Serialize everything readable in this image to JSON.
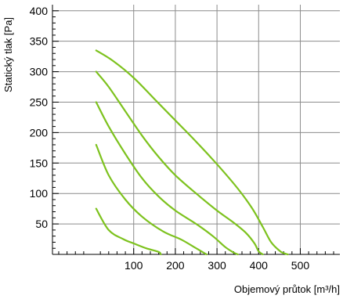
{
  "chart_data": {
    "type": "line",
    "title": "",
    "xlabel": "Objemový průtok [m³/h]",
    "ylabel": "Statický tlak [Pa]",
    "xlim": [
      -95,
      595
    ],
    "ylim": [
      0,
      410
    ],
    "x_ticks": [
      100,
      200,
      300,
      400,
      500
    ],
    "y_ticks": [
      50,
      100,
      150,
      200,
      250,
      300,
      350,
      400
    ],
    "grid": true,
    "line_color": "#7dc21e",
    "grid_color": "#8c8c8c",
    "series": [
      {
        "x": [
          10,
          40,
          75,
          100,
          130,
          160,
          165
        ],
        "y": [
          75,
          40,
          25,
          18,
          10,
          4,
          0
        ]
      },
      {
        "x": [
          10,
          40,
          80,
          120,
          170,
          215,
          250,
          270,
          275
        ],
        "y": [
          180,
          130,
          90,
          62,
          38,
          24,
          10,
          2,
          0
        ]
      },
      {
        "x": [
          10,
          40,
          80,
          120,
          160,
          200,
          250,
          290,
          320,
          340,
          350
        ],
        "y": [
          250,
          210,
          165,
          125,
          95,
          72,
          50,
          30,
          12,
          3,
          0
        ]
      },
      {
        "x": [
          10,
          40,
          80,
          120,
          160,
          200,
          250,
          300,
          340,
          370,
          390,
          400,
          410
        ],
        "y": [
          300,
          275,
          235,
          195,
          160,
          130,
          100,
          72,
          52,
          35,
          18,
          5,
          0
        ]
      },
      {
        "x": [
          10,
          50,
          100,
          150,
          200,
          250,
          300,
          350,
          385,
          410,
          430,
          450,
          460,
          470
        ],
        "y": [
          335,
          318,
          290,
          255,
          220,
          185,
          148,
          108,
          75,
          45,
          20,
          6,
          2,
          0
        ]
      }
    ]
  }
}
